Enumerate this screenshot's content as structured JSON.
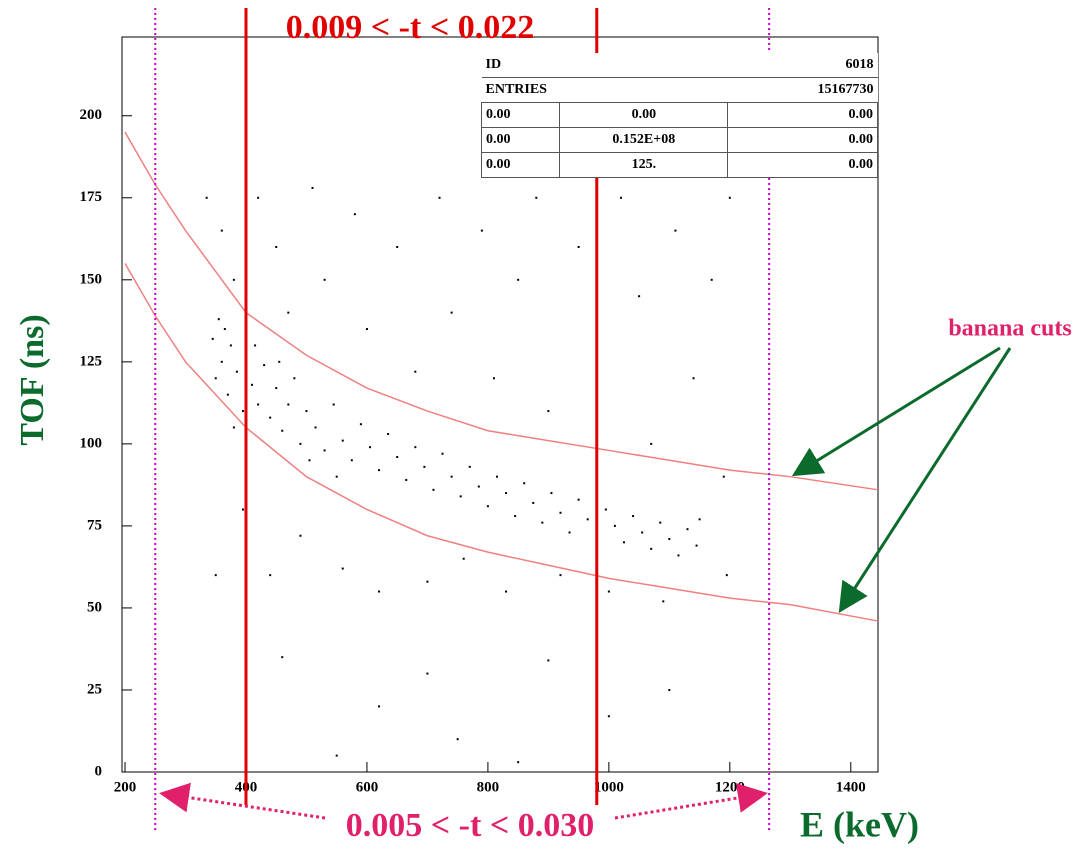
{
  "chart_data": {
    "type": "scatter",
    "xlabel": "E  (keV)",
    "ylabel": "TOF (ns)",
    "xlim": [
      195,
      1445
    ],
    "ylim": [
      0,
      224
    ],
    "xticks": [
      200,
      400,
      600,
      800,
      1000,
      1200,
      1400
    ],
    "yticks": [
      0,
      25,
      50,
      75,
      100,
      125,
      150,
      175,
      200
    ],
    "series": [
      {
        "color": "#000000",
        "x": [
          345,
          350,
          355,
          360,
          370,
          375,
          385,
          395,
          400,
          410,
          420,
          430,
          440,
          450,
          460,
          470,
          480,
          490,
          500,
          515,
          530,
          545,
          560,
          575,
          590,
          605,
          620,
          635,
          650,
          665,
          680,
          695,
          710,
          725,
          740,
          755,
          770,
          785,
          800,
          815,
          830,
          845,
          860,
          875,
          890,
          905,
          920,
          935,
          950,
          965,
          980,
          995,
          1010,
          1025,
          1040,
          1055,
          1070,
          1085,
          1100,
          1115,
          1130,
          1145,
          1150,
          365,
          380,
          415,
          455,
          505,
          550,
          335,
          350,
          360,
          380,
          395,
          420,
          440,
          450,
          470,
          490,
          510,
          530,
          560,
          580,
          600,
          620,
          650,
          680,
          700,
          720,
          740,
          760,
          790,
          810,
          830,
          850,
          880,
          900,
          920,
          950,
          980,
          1000,
          1020,
          1050,
          1070,
          1090,
          1110,
          1140,
          1170,
          1190,
          1200,
          1195,
          460,
          620,
          750,
          900,
          400,
          1000,
          550,
          700,
          850,
          1100
        ],
        "values": [
          132,
          120,
          138,
          125,
          115,
          130,
          122,
          110,
          128,
          118,
          112,
          124,
          108,
          117,
          104,
          112,
          120,
          100,
          110,
          105,
          98,
          112,
          101,
          95,
          106,
          99,
          92,
          103,
          96,
          89,
          99,
          93,
          86,
          97,
          90,
          84,
          93,
          87,
          81,
          90,
          85,
          78,
          88,
          82,
          76,
          85,
          79,
          73,
          83,
          77,
          71,
          80,
          75,
          70,
          78,
          73,
          68,
          76,
          71,
          66,
          74,
          69,
          77,
          135,
          105,
          130,
          125,
          95,
          90,
          175,
          60,
          165,
          150,
          80,
          175,
          60,
          160,
          140,
          72,
          178,
          150,
          62,
          170,
          135,
          55,
          160,
          122,
          58,
          175,
          140,
          65,
          165,
          120,
          55,
          150,
          175,
          110,
          60,
          160,
          130,
          55,
          175,
          145,
          100,
          52,
          165,
          120,
          150,
          90,
          175,
          60,
          35,
          20,
          10,
          34,
          18,
          17,
          5,
          30,
          3,
          25
        ]
      }
    ],
    "curves": [
      {
        "color": "#f08080",
        "x": [
          200,
          250,
          300,
          400,
          500,
          600,
          700,
          800,
          900,
          1000,
          1100,
          1200,
          1300,
          1445
        ],
        "values": [
          195,
          179,
          165,
          140,
          127,
          117,
          110,
          104,
          101,
          98,
          95,
          92,
          90,
          86
        ]
      },
      {
        "color": "#f08080",
        "x": [
          200,
          250,
          300,
          400,
          500,
          600,
          700,
          800,
          900,
          1000,
          1100,
          1200,
          1300,
          1445
        ],
        "values": [
          155,
          139,
          125,
          105,
          90,
          80,
          72,
          67,
          63,
          59,
          56,
          53,
          51,
          46
        ]
      }
    ],
    "vlines": [
      {
        "value": 400,
        "color": "#e00000",
        "style": "solid"
      },
      {
        "value": 980,
        "color": "#e00000",
        "style": "solid"
      },
      {
        "value": 250,
        "color": "#d000d0",
        "style": "dotted"
      },
      {
        "value": 1265,
        "color": "#d000d0",
        "style": "dotted"
      }
    ],
    "annotations": [
      "0.009 < -t < 0.022",
      "0.005 < -t < 0.030",
      "banana cuts"
    ],
    "stats": {
      "rows": [
        [
          "ID",
          "6018"
        ],
        [
          "ENTRIES",
          "15167730"
        ],
        [
          "0.00",
          "0.00",
          "0.00"
        ],
        [
          "0.00",
          "0.152E+08",
          "0.00"
        ],
        [
          "0.00",
          "125.",
          "0.00"
        ]
      ]
    }
  }
}
